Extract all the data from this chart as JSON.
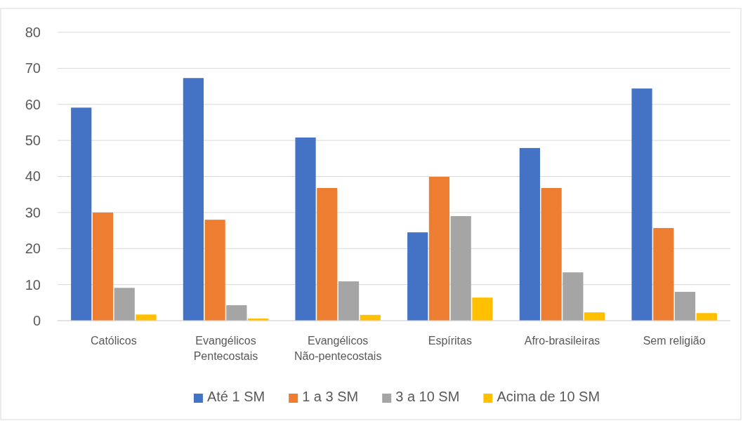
{
  "chart_data": {
    "type": "bar",
    "categories": [
      "Católicos",
      "Evangélicos Pentecostais",
      "Evangélicos Não-pentecostais",
      "Espíritas",
      "Afro-brasileiras",
      "Sem religião"
    ],
    "series": [
      {
        "name": "Até 1 SM",
        "color": "#4472c4",
        "values": [
          59.1,
          67.3,
          50.8,
          24.5,
          47.9,
          64.4
        ]
      },
      {
        "name": "1 a 3 SM",
        "color": "#ed7d31",
        "values": [
          30,
          28,
          36.8,
          39.9,
          36.8,
          25.7
        ]
      },
      {
        "name": "3 a 10 SM",
        "color": "#a5a5a5",
        "values": [
          9.1,
          4.3,
          10.9,
          29,
          13.4,
          8
        ]
      },
      {
        "name": "Acima de 10 SM",
        "color": "#ffc000",
        "values": [
          1.7,
          0.6,
          1.6,
          6.4,
          2.3,
          2.1
        ]
      }
    ],
    "ylim": [
      0,
      80
    ],
    "yticks": [
      0,
      10,
      20,
      30,
      40,
      50,
      60,
      70,
      80
    ],
    "grid": "y",
    "legend": "bottom"
  }
}
